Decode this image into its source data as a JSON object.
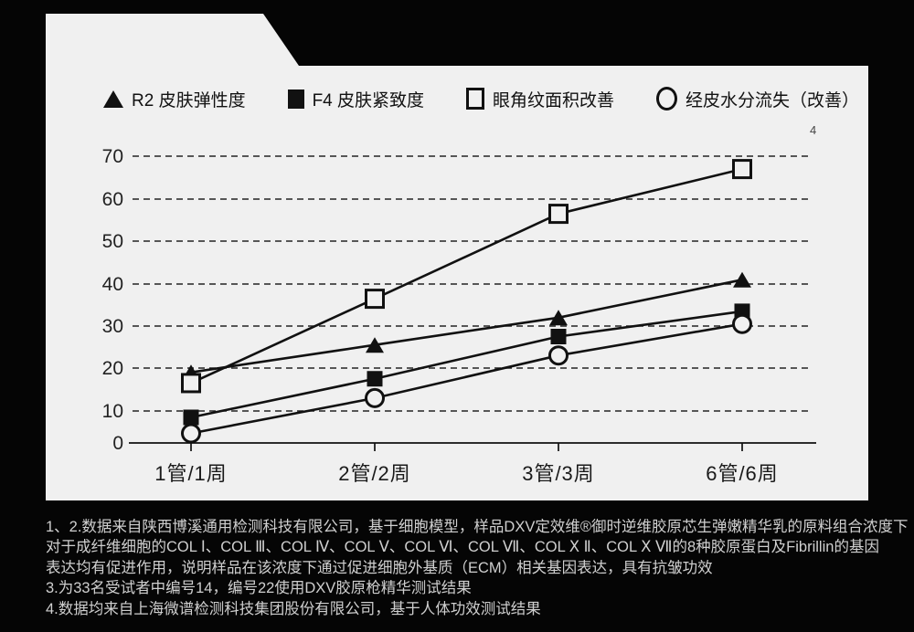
{
  "colors": {
    "background": "#050505",
    "card": "#f0f0f0",
    "ink": "#111111",
    "grid_line": "#222222",
    "footnote_text": "#cfcfcf"
  },
  "superscript_marker": "4",
  "legend_items": [
    {
      "marker": "filled-triangle",
      "label": "R2 皮肤弹性度"
    },
    {
      "marker": "filled-square",
      "label": "F4 皮肤紧致度"
    },
    {
      "marker": "open-square",
      "label": "眼角纹面积改善"
    },
    {
      "marker": "open-circle",
      "label": "经皮水分流失（改善）"
    }
  ],
  "chart_data": {
    "type": "line",
    "categories": [
      "1管/1周",
      "2管/2周",
      "3管/3周",
      "6管/6周"
    ],
    "series": [
      {
        "name": "R2 皮肤弹性度",
        "marker": "filled-triangle",
        "values": [
          19,
          25.5,
          32,
          41
        ]
      },
      {
        "name": "F4 皮肤紧致度",
        "marker": "filled-square",
        "values": [
          8,
          17.5,
          27.5,
          33.5
        ]
      },
      {
        "name": "眼角纹面积改善",
        "marker": "open-square",
        "values": [
          16.5,
          36.5,
          56.5,
          67
        ]
      },
      {
        "name": "经皮水分流失（改善）",
        "marker": "open-circle",
        "values": [
          3,
          13,
          23,
          30.5
        ]
      }
    ],
    "title": "",
    "xlabel": "",
    "ylabel": "",
    "ylim": [
      0,
      70
    ],
    "yticks": [
      0,
      10,
      20,
      30,
      40,
      50,
      60,
      70
    ],
    "grid": "dashed-horizontal",
    "legend_position": "top"
  },
  "footnotes": [
    "1、2.数据来自陕西博溪通用检测科技有限公司，基于细胞模型，样品DXV定效维®御时逆维胶原芯生弹嫩精华乳的原料组合浓度下",
    "对于成纤维细胞的COL Ⅰ、COL Ⅲ、COL Ⅳ、COL Ⅴ、COL Ⅵ、COL Ⅶ、COL Ⅹ Ⅱ、COL Ⅹ Ⅶ的8种胶原蛋白及Fibrillin的基因",
    "表达均有促进作用，说明样品在该浓度下通过促进细胞外基质（ECM）相关基因表达，具有抗皱功效",
    "3.为33名受试者中编号14，编号22使用DXV胶原枪精华测试结果",
    "4.数据均来自上海微谱检测科技集团股份有限公司，基于人体功效测试结果"
  ]
}
